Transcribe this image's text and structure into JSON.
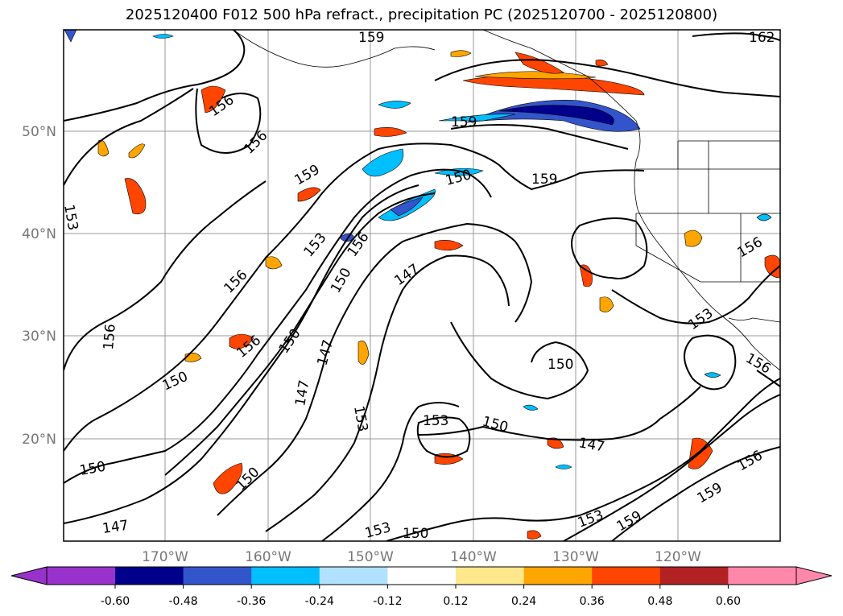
{
  "title": "2025120400 F012 500 hPa refract., precipitation PC (2025120700 - 2025120800)",
  "map": {
    "lat_labels": [
      "50°N",
      "40°N",
      "30°N",
      "20°N"
    ],
    "lon_labels": [
      "170°W",
      "160°W",
      "150°W",
      "140°W",
      "130°W",
      "120°W"
    ],
    "contour_labels": [
      "159",
      "162",
      "156",
      "156",
      "159",
      "159",
      "150",
      "159",
      "153",
      "156",
      "153",
      "156",
      "150",
      "147",
      "156",
      "156",
      "150",
      "147",
      "153",
      "156",
      "147",
      "153",
      "150",
      "150",
      "153",
      "150",
      "147",
      "150",
      "147",
      "153",
      "159",
      "159",
      "156",
      "150",
      "153",
      "150",
      "156"
    ]
  },
  "colorbar": {
    "ticks": [
      "-0.60",
      "-0.48",
      "-0.36",
      "-0.24",
      "-0.12",
      "0.12",
      "0.24",
      "0.36",
      "0.48",
      "0.60"
    ],
    "colors": [
      "#9932cc",
      "#00008b",
      "#3355cc",
      "#00bfff",
      "#b0e2ff",
      "#ffffff",
      "#ffe88c",
      "#ffa500",
      "#ff4500",
      "#b22222",
      "#ff88aa"
    ]
  }
}
